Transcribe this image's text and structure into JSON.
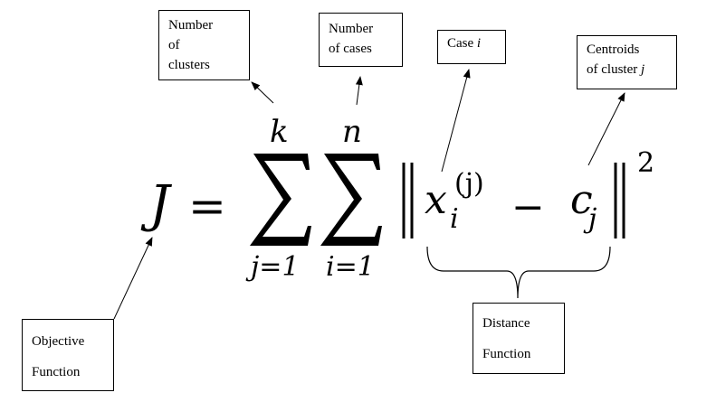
{
  "equation": {
    "lhs": "J",
    "equals": "=",
    "sum1": {
      "upper": "k",
      "lower": "j=1"
    },
    "sum2": {
      "upper": "n",
      "lower": "i=1"
    },
    "x_base": "x",
    "x_sub": "i",
    "x_sup": "(j)",
    "minus": "−",
    "c_base": "c",
    "c_sub": "j",
    "power": "2"
  },
  "labels": {
    "num_clusters": [
      "Number",
      "of",
      "clusters"
    ],
    "num_cases": [
      "Number",
      "of cases"
    ],
    "case_i": {
      "text": "Case ",
      "var": "i"
    },
    "centroids": {
      "line1": "Centroids",
      "line2": "of cluster ",
      "var": "j"
    },
    "objective": [
      "Objective",
      "Function"
    ],
    "distance": [
      "Distance",
      "Function"
    ]
  }
}
